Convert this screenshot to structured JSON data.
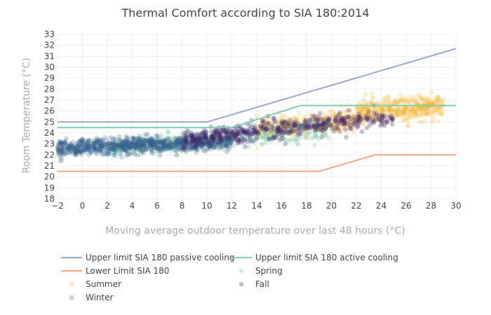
{
  "chart_data": {
    "type": "scatter",
    "title": "Thermal Comfort according to SIA 180:2014",
    "xlabel": "Moving average outdoor temperature over last 48 hours (°C)",
    "ylabel": "Room Temperature (°C)",
    "xlim": [
      -2,
      30
    ],
    "ylim": [
      18,
      33
    ],
    "xticks": [
      -2,
      0,
      2,
      4,
      6,
      8,
      10,
      12,
      14,
      16,
      18,
      20,
      22,
      24,
      26,
      28,
      30
    ],
    "yticks": [
      18,
      19,
      20,
      21,
      22,
      23,
      24,
      25,
      26,
      27,
      28,
      29,
      30,
      31,
      32,
      33
    ],
    "grid": true,
    "legend_position": "bottom",
    "lines": [
      {
        "name": "Upper limit SIA 180 passive cooling",
        "color": "#9aa8cc",
        "x": [
          -2,
          10,
          30
        ],
        "y": [
          25,
          25,
          31.7
        ]
      },
      {
        "name": "Upper limit SIA 180 active cooling",
        "color": "#7fcdb2",
        "x": [
          -2,
          12,
          17.5,
          30
        ],
        "y": [
          24.5,
          24.5,
          26.5,
          26.5
        ]
      },
      {
        "name": "Lower Limit SIA 180",
        "color": "#f4a582",
        "x": [
          -2,
          19,
          23.5,
          30
        ],
        "y": [
          20.5,
          20.5,
          22,
          22
        ]
      }
    ],
    "scatter_series": [
      {
        "name": "Spring",
        "color": "#66c2a5",
        "clusters": [
          {
            "x_range": [
              2,
              10
            ],
            "y_center": 22.6,
            "y_slope": 0.1,
            "spread": 0.7,
            "count": 220
          },
          {
            "x_range": [
              10,
              20
            ],
            "y_center": 23.3,
            "y_slope": 0.1,
            "spread": 0.8,
            "count": 200
          }
        ]
      },
      {
        "name": "Summer",
        "color": "#f6b733",
        "clusters": [
          {
            "x_range": [
              14,
              22
            ],
            "y_center": 24.3,
            "y_slope": 0.12,
            "spread": 0.8,
            "count": 300
          },
          {
            "x_range": [
              22,
              29
            ],
            "y_center": 25.8,
            "y_slope": 0.1,
            "spread": 0.9,
            "count": 420
          }
        ]
      },
      {
        "name": "Fall",
        "color": "#3d1f63",
        "clusters": [
          {
            "x_range": [
              8,
              20
            ],
            "y_center": 23.4,
            "y_slope": 0.12,
            "spread": 0.7,
            "count": 380
          },
          {
            "x_range": [
              20,
              25
            ],
            "y_center": 24.9,
            "y_slope": 0.12,
            "spread": 0.7,
            "count": 110
          }
        ]
      },
      {
        "name": "Winter",
        "color": "#34618d",
        "clusters": [
          {
            "x_range": [
              -2,
              6
            ],
            "y_center": 22.6,
            "y_slope": 0.05,
            "spread": 0.6,
            "count": 520
          },
          {
            "x_range": [
              6,
              12
            ],
            "y_center": 22.8,
            "y_slope": 0.06,
            "spread": 0.6,
            "count": 300
          }
        ]
      }
    ],
    "legend": [
      {
        "name": "Upper limit SIA 180 passive cooling",
        "kind": "line",
        "color": "#9aa8cc"
      },
      {
        "name": "Upper limit SIA 180 active cooling",
        "kind": "line",
        "color": "#7fcdb2"
      },
      {
        "name": "Lower Limit SIA 180",
        "kind": "line",
        "color": "#f4a582"
      },
      {
        "name": "Spring",
        "kind": "marker",
        "color": "#66c2a5"
      },
      {
        "name": "Summer",
        "kind": "marker",
        "color": "#f6b733"
      },
      {
        "name": "Fall",
        "kind": "marker",
        "color": "#3d1f63"
      },
      {
        "name": "Winter",
        "kind": "marker",
        "color": "#34618d"
      }
    ]
  }
}
